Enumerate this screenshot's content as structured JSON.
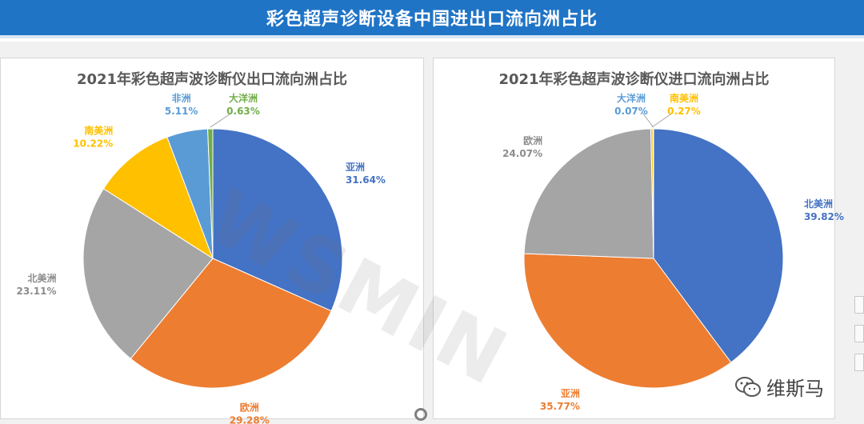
{
  "header": {
    "title": "彩色超声诊断设备中国进出口流向洲占比"
  },
  "watermark": "WSMIN",
  "branding": {
    "label": "维斯马",
    "icon": "wechat-icon"
  },
  "colors": {
    "blue": "#4472c4",
    "orange": "#ed7d31",
    "gray": "#a5a5a5",
    "yellow": "#ffc000",
    "lightblue": "#5b9bd5",
    "green": "#70ad47",
    "banner": "#1f74c6"
  },
  "chart_data": [
    {
      "type": "pie",
      "title": "2021年彩色超声波诊断仪出口流向洲占比",
      "slices": [
        {
          "label": "亚洲",
          "value": 31.64,
          "display": "31.64%",
          "color": "#4472c4"
        },
        {
          "label": "欧洲",
          "value": 29.28,
          "display": "29.28%",
          "color": "#ed7d31"
        },
        {
          "label": "北美洲",
          "value": 23.11,
          "display": "23.11%",
          "color": "#a5a5a5"
        },
        {
          "label": "南美洲",
          "value": 10.22,
          "display": "10.22%",
          "color": "#ffc000"
        },
        {
          "label": "非洲",
          "value": 5.11,
          "display": "5.11%",
          "color": "#5b9bd5"
        },
        {
          "label": "大洋洲",
          "value": 0.63,
          "display": "0.63%",
          "color": "#70ad47"
        }
      ]
    },
    {
      "type": "pie",
      "title": "2021年彩色超声波诊断仪进口流向洲占比",
      "slices": [
        {
          "label": "北美洲",
          "value": 39.82,
          "display": "39.82%",
          "color": "#4472c4"
        },
        {
          "label": "亚洲",
          "value": 35.77,
          "display": "35.77%",
          "color": "#ed7d31"
        },
        {
          "label": "欧洲",
          "value": 24.07,
          "display": "24.07%",
          "color": "#a5a5a5"
        },
        {
          "label": "南美洲",
          "value": 0.27,
          "display": "0.27%",
          "color": "#ffc000"
        },
        {
          "label": "大洋洲",
          "value": 0.07,
          "display": "0.07%",
          "color": "#5b9bd5"
        }
      ]
    }
  ]
}
